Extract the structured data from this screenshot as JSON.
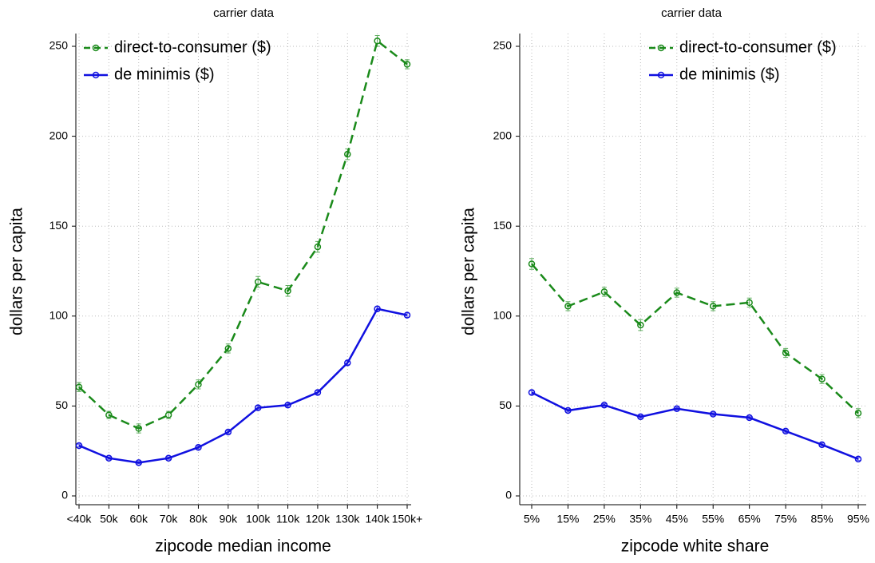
{
  "chart_data": [
    {
      "type": "line",
      "title": "carrier data",
      "x_label": "zipcode median income",
      "y_label": "dollars per capita",
      "categories": [
        "<40k",
        "50k",
        "60k",
        "70k",
        "80k",
        "90k",
        "100k",
        "110k",
        "120k",
        "130k",
        "140k",
        "150k+"
      ],
      "ylim": [
        0,
        250
      ],
      "yticks": [
        0,
        50,
        100,
        150,
        200,
        250
      ],
      "grid": true,
      "legend": "top",
      "series": [
        {
          "name": "direct-to-consumer ($)",
          "color": "#1a8a1a",
          "dashed": true,
          "values": [
            60.5,
            45,
            37.5,
            45,
            62,
            82,
            119,
            114,
            138.5,
            190,
            253,
            240
          ],
          "errors": [
            2.5,
            2,
            2.5,
            2,
            2.5,
            2.5,
            3,
            3,
            3,
            3,
            3,
            2.5
          ]
        },
        {
          "name": "de minimis ($)",
          "color": "#1010e0",
          "dashed": false,
          "values": [
            28,
            21,
            18.5,
            21,
            27,
            35.5,
            49,
            50.5,
            57.5,
            74,
            104,
            100.5
          ],
          "errors": [
            0.8,
            0.7,
            0.7,
            0.7,
            0.8,
            0.8,
            1,
            1,
            1,
            1,
            1.2,
            1.2
          ]
        }
      ]
    },
    {
      "type": "line",
      "title": "carrier data",
      "x_label": "zipcode white share",
      "y_label": "dollars per capita",
      "categories": [
        "5%",
        "15%",
        "25%",
        "35%",
        "45%",
        "55%",
        "65%",
        "75%",
        "85%",
        "95%"
      ],
      "ylim": [
        0,
        250
      ],
      "yticks": [
        0,
        50,
        100,
        150,
        200,
        250
      ],
      "grid": true,
      "legend": "top",
      "series": [
        {
          "name": "direct-to-consumer ($)",
          "color": "#1a8a1a",
          "dashed": true,
          "values": [
            129,
            105.5,
            113.5,
            95,
            113,
            105.5,
            107.5,
            79.5,
            65,
            46
          ],
          "errors": [
            3,
            2.5,
            2.5,
            3,
            2.5,
            2.5,
            2.5,
            2.5,
            2.5,
            2.5
          ]
        },
        {
          "name": "de minimis ($)",
          "color": "#1010e0",
          "dashed": false,
          "values": [
            57.5,
            47.5,
            50.5,
            44,
            48.5,
            45.5,
            43.5,
            36,
            28.5,
            20.5
          ],
          "errors": [
            1,
            0.8,
            0.8,
            0.8,
            0.8,
            0.8,
            0.8,
            0.8,
            0.8,
            0.8
          ]
        }
      ]
    }
  ]
}
